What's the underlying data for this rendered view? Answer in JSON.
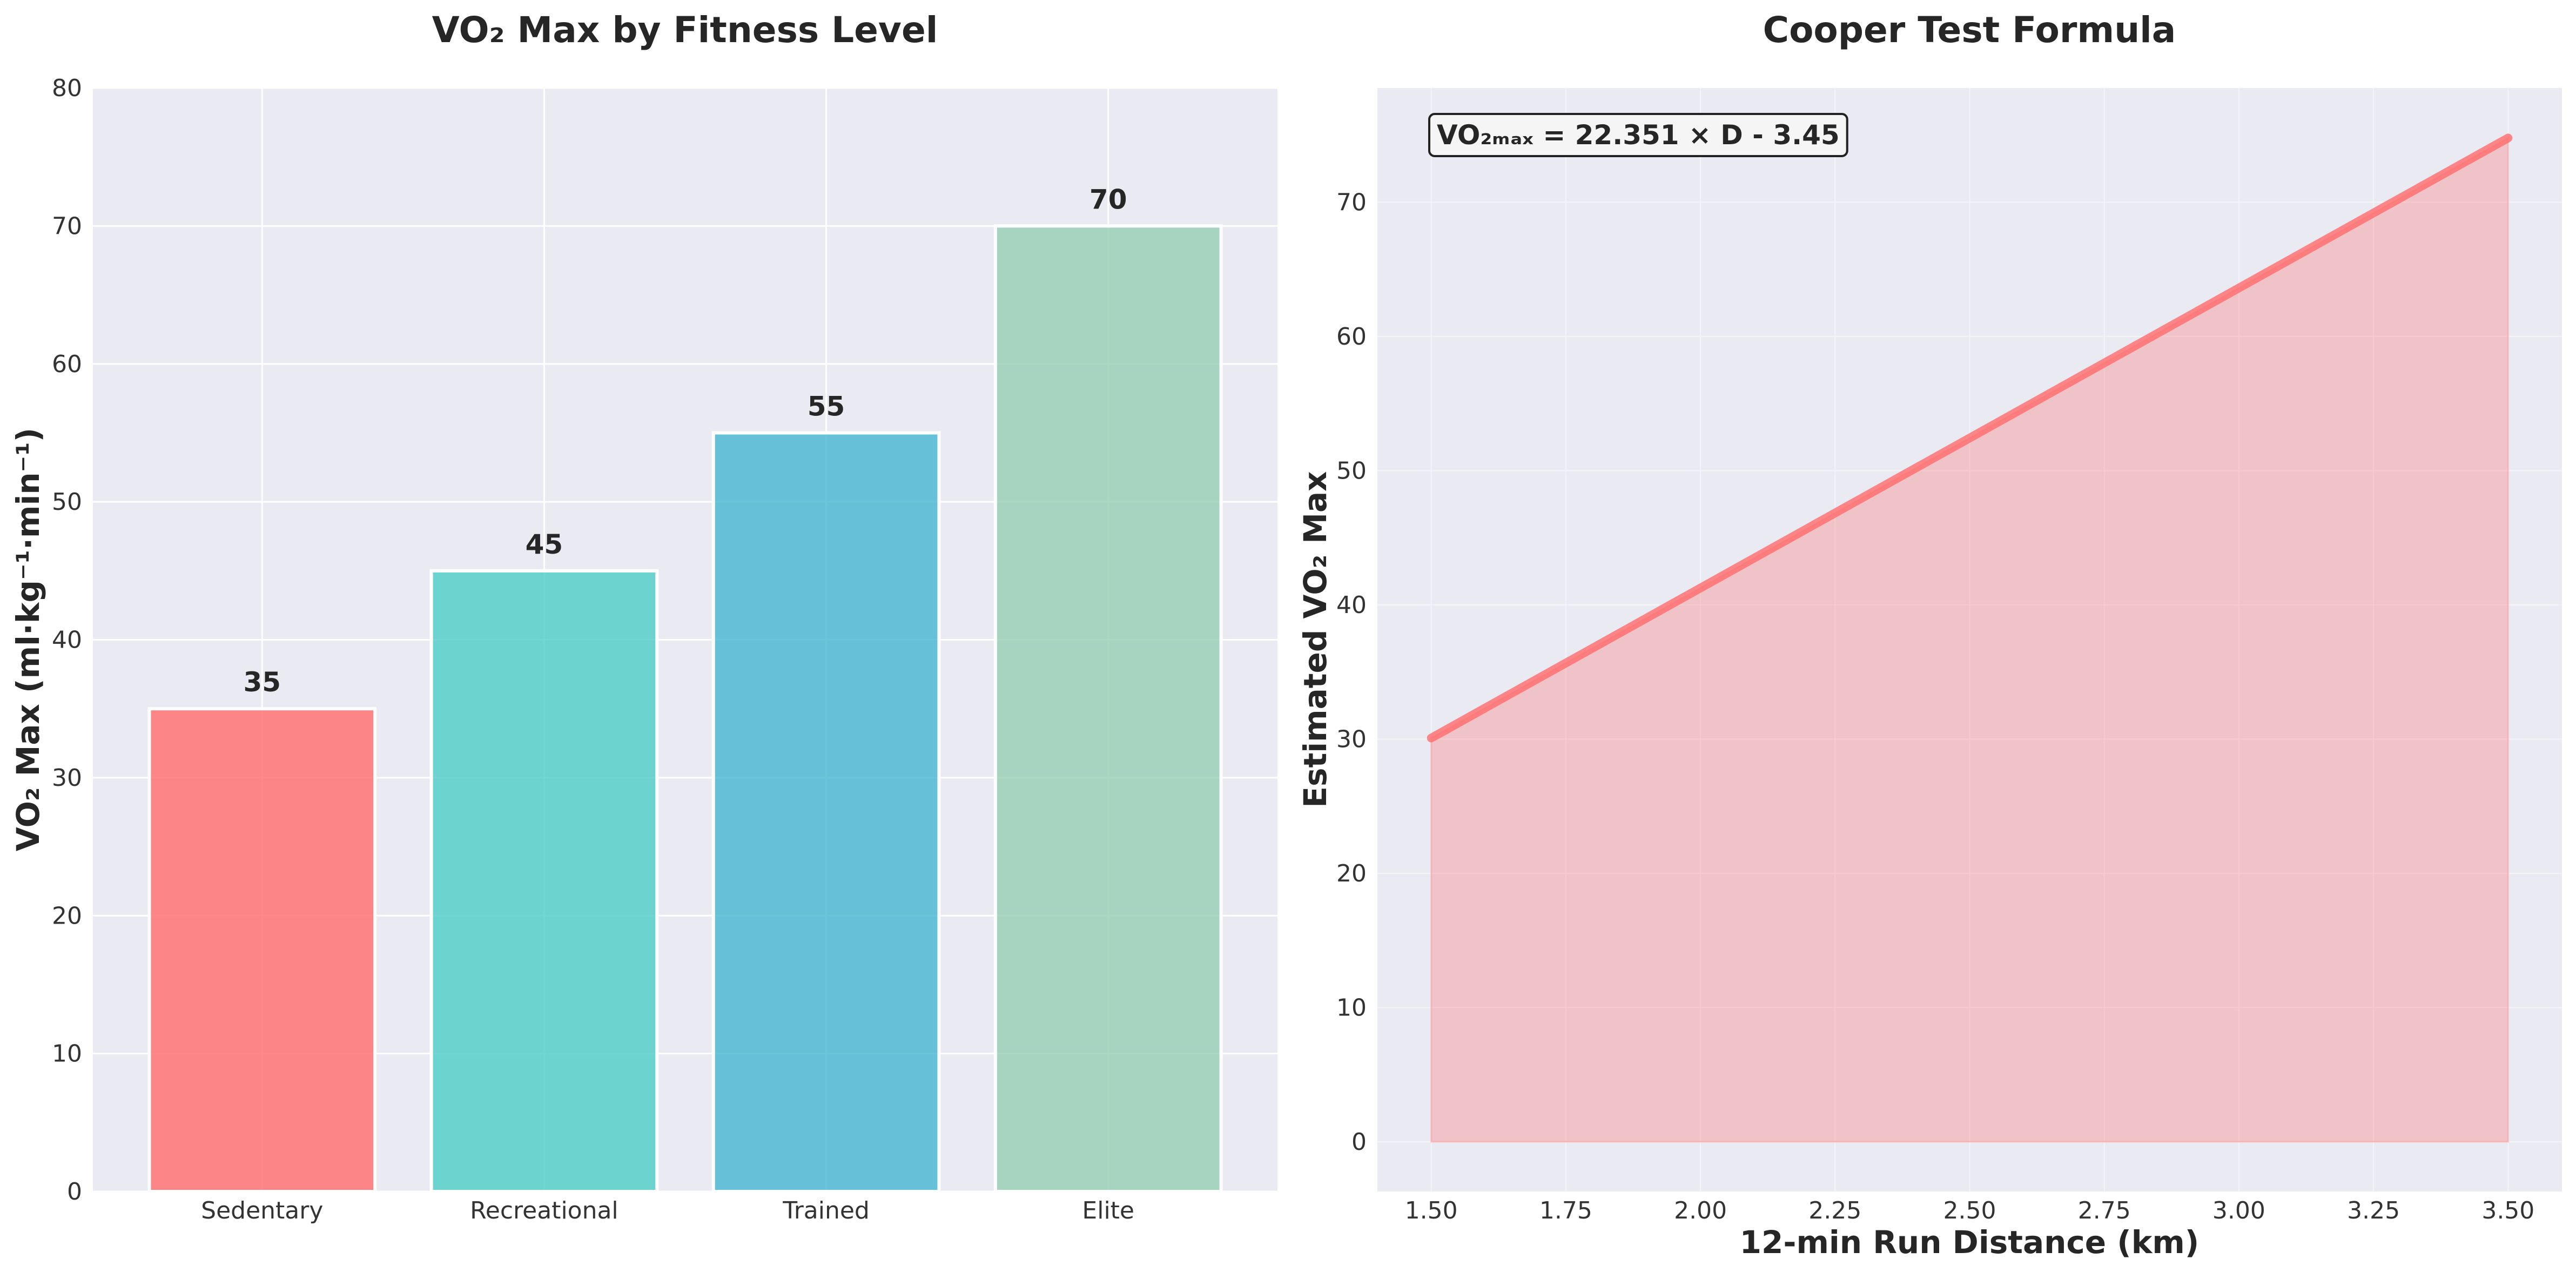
{
  "chart_data": [
    {
      "type": "bar",
      "title": "VO₂ Max by Fitness Level",
      "xlabel": "",
      "ylabel": "VO₂ Max (ml·kg⁻¹·min⁻¹)",
      "categories": [
        "Sedentary",
        "Recreational",
        "Trained",
        "Elite"
      ],
      "values": [
        35,
        45,
        55,
        70
      ],
      "data_labels": [
        "35",
        "45",
        "55",
        "70"
      ],
      "colors": [
        "#FF6B6B",
        "#4ECDC4",
        "#45B7D1",
        "#96CEB4"
      ],
      "ylim": [
        0,
        80
      ],
      "yticks": [
        0,
        10,
        20,
        30,
        40,
        50,
        60,
        70,
        80
      ],
      "ytick_labels": [
        "0",
        "10",
        "20",
        "30",
        "40",
        "50",
        "60",
        "70",
        "80"
      ],
      "grid": true,
      "background": "#EAEAF2"
    },
    {
      "type": "area",
      "title": "Cooper Test Formula",
      "xlabel": "12-min Run Distance (km)",
      "ylabel": "Estimated VO₂ Max",
      "x": [
        1.5,
        3.5
      ],
      "y": [
        30.08,
        74.78
      ],
      "xlim": [
        1.4,
        3.6
      ],
      "ylim": [
        -3.7,
        78.5
      ],
      "xticks": [
        1.5,
        1.75,
        2.0,
        2.25,
        2.5,
        2.75,
        3.0,
        3.25,
        3.5
      ],
      "xtick_labels": [
        "1.50",
        "1.75",
        "2.00",
        "2.25",
        "2.50",
        "2.75",
        "3.00",
        "3.25",
        "3.50"
      ],
      "yticks": [
        0,
        10,
        20,
        30,
        40,
        50,
        60,
        70
      ],
      "ytick_labels": [
        "0",
        "10",
        "20",
        "30",
        "40",
        "50",
        "60",
        "70"
      ],
      "annotation": "VO₂ₘₐₓ = 22.351 × D - 3.45",
      "line_color": "#FF6B6B",
      "fill_color": "#FF6B6B",
      "grid": true,
      "background": "#EAEAF2"
    }
  ]
}
